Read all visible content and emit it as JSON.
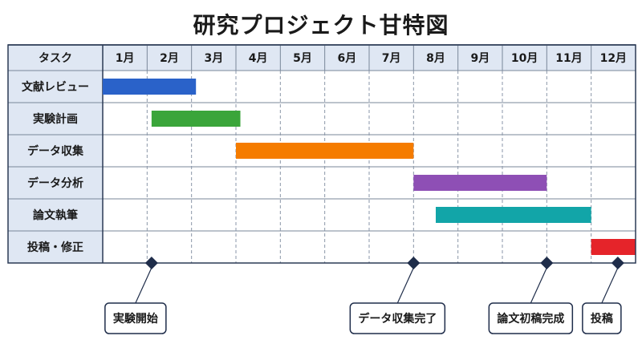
{
  "title": "研究プロジェクト甘特図",
  "chart_data": {
    "type": "gantt",
    "title": "研究プロジェクト甘特図",
    "task_header": "タスク",
    "months": [
      "1月",
      "2月",
      "3月",
      "4月",
      "5月",
      "6月",
      "7月",
      "8月",
      "9月",
      "10月",
      "11月",
      "12月"
    ],
    "tasks": [
      {
        "name": "文献レビュー",
        "start": 0.0,
        "end": 2.1,
        "color": "#2a62c9"
      },
      {
        "name": "実験計画",
        "start": 1.1,
        "end": 3.1,
        "color": "#3aa53a"
      },
      {
        "name": "データ収集",
        "start": 3.0,
        "end": 7.0,
        "color": "#f57c00"
      },
      {
        "name": "データ分析",
        "start": 7.0,
        "end": 10.0,
        "color": "#8e4fb5"
      },
      {
        "name": "論文執筆",
        "start": 7.5,
        "end": 11.0,
        "color": "#12a5a8"
      },
      {
        "name": "投稿・修正",
        "start": 11.0,
        "end": 12.0,
        "color": "#e5242a"
      }
    ],
    "milestones": [
      {
        "label": "実験開始",
        "x": 1.1
      },
      {
        "label": "データ収集完了",
        "x": 7.0
      },
      {
        "label": "論文初稿完成",
        "x": 10.0
      },
      {
        "label": "投稿",
        "x": 11.6
      }
    ]
  }
}
